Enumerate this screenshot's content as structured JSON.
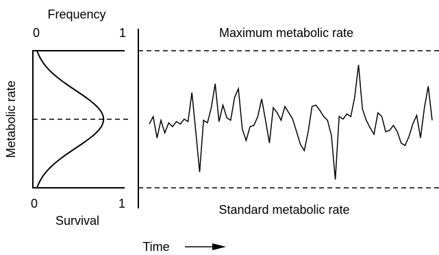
{
  "left_panel": {
    "top_axis_label": "Frequency",
    "top_tick_start": "0",
    "top_tick_end": "1",
    "bottom_tick_start": "0",
    "bottom_tick_end": "1",
    "bottom_axis_label": "Survival",
    "y_axis_label": "Metabolic rate",
    "frequency_curve_peak": 0.77
  },
  "right_panel": {
    "max_line_label": "Maximum metabolic rate",
    "min_line_label": "Standard metabolic rate",
    "x_axis_label": "Time",
    "arrow_icon": "right-arrow-icon",
    "trace_values": [
      0.44,
      0.5,
      0.33,
      0.47,
      0.37,
      0.45,
      0.42,
      0.46,
      0.44,
      0.48,
      0.46,
      0.69,
      0.38,
      0.06,
      0.47,
      0.45,
      0.57,
      0.76,
      0.46,
      0.59,
      0.49,
      0.47,
      0.65,
      0.72,
      0.4,
      0.31,
      0.42,
      0.43,
      0.5,
      0.64,
      0.47,
      0.29,
      0.57,
      0.53,
      0.47,
      0.58,
      0.53,
      0.48,
      0.38,
      0.28,
      0.23,
      0.38,
      0.58,
      0.59,
      0.55,
      0.5,
      0.47,
      0.35,
      0.0,
      0.5,
      0.48,
      0.52,
      0.5,
      0.65,
      0.91,
      0.56,
      0.47,
      0.41,
      0.36,
      0.53,
      0.5,
      0.38,
      0.39,
      0.43,
      0.38,
      0.29,
      0.27,
      0.34,
      0.44,
      0.51,
      0.33,
      0.57,
      0.74,
      0.47
    ]
  }
}
